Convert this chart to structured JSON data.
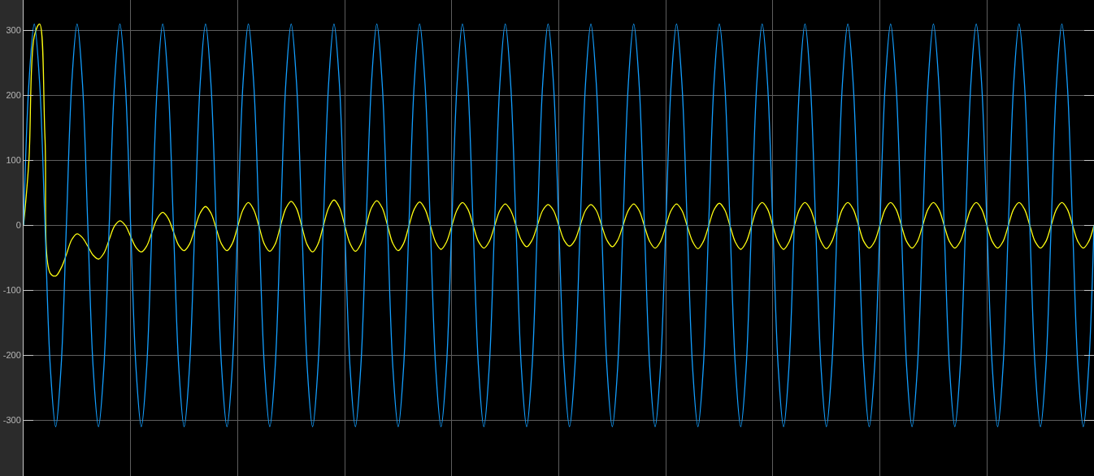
{
  "chart_data": {
    "type": "line",
    "categories": [
      null,
      null,
      null,
      null,
      null,
      null,
      null,
      null,
      null,
      null,
      null,
      null,
      null,
      null,
      null,
      null,
      null,
      null,
      null,
      null,
      null,
      null,
      null,
      null,
      null,
      null,
      null,
      null,
      null,
      null,
      null,
      null,
      null,
      null,
      null,
      null,
      null,
      null,
      null,
      null,
      null,
      null,
      null,
      null,
      null,
      null,
      null,
      null,
      null,
      null,
      null,
      null,
      null,
      null,
      null,
      null,
      null,
      null,
      null,
      null,
      null,
      null,
      null,
      null,
      null,
      null,
      null,
      null,
      null,
      null,
      null,
      null,
      null,
      null,
      null,
      null,
      null,
      null,
      null,
      null,
      null,
      null,
      null,
      null,
      null,
      null,
      null,
      null,
      null,
      null,
      null,
      null,
      null,
      null,
      null,
      null,
      null,
      null,
      null,
      null,
      null,
      null,
      null,
      null,
      null,
      null,
      null,
      null,
      null,
      null,
      null,
      null,
      null,
      null,
      null,
      null,
      null,
      null,
      null,
      null,
      null,
      null,
      null,
      null,
      null,
      null,
      null,
      null,
      null,
      null,
      null,
      null,
      null,
      null,
      null,
      null,
      null,
      null,
      null,
      null,
      null,
      null,
      null,
      null,
      null,
      null,
      null,
      null,
      null,
      null,
      null,
      null,
      null,
      null,
      null,
      null,
      null,
      null,
      null,
      null,
      null,
      null,
      null,
      null,
      null,
      null,
      null,
      null,
      null,
      null,
      null,
      null,
      null,
      null,
      null,
      null,
      null,
      null,
      null,
      null,
      null,
      null,
      null,
      null,
      null,
      null,
      null,
      null,
      null,
      null,
      null,
      null,
      null,
      null,
      null,
      null,
      null,
      null,
      null,
      null,
      null
    ],
    "series": [
      {
        "color": "#ffff11",
        "values": [
          0,
          100,
          291,
          310,
          135,
          -74,
          -78,
          -66,
          -45,
          -22,
          -13,
          -19,
          -32,
          -46,
          -52,
          -43,
          -22,
          -1,
          7,
          0,
          -17,
          -34,
          -41,
          -32,
          -10,
          11,
          20,
          11,
          -10,
          -31,
          -39,
          -29,
          -5,
          19,
          29,
          19,
          -5,
          -29,
          -39,
          -28,
          -2,
          24,
          35,
          24,
          -2,
          -29,
          -40,
          -29,
          -1,
          26,
          37,
          26,
          -2,
          -30,
          -41,
          -29,
          -1,
          27,
          39,
          28,
          0,
          -28,
          -40,
          -29,
          -1,
          27,
          38,
          27,
          0,
          -28,
          -39,
          -28,
          -1,
          25,
          36,
          25,
          0,
          -26,
          -37,
          -26,
          -1,
          24,
          35,
          25,
          0,
          -25,
          -35,
          -25,
          -1,
          23,
          33,
          23,
          0,
          -23,
          -33,
          -23,
          0,
          23,
          32,
          23,
          0,
          -23,
          -32,
          -23,
          0,
          23,
          32,
          23,
          0,
          -23,
          -33,
          -23,
          0,
          23,
          33,
          23,
          -1,
          -25,
          -35,
          -25,
          -1,
          23,
          33,
          23,
          -1,
          -25,
          -36,
          -25,
          -1,
          24,
          34,
          24,
          -1,
          -26,
          -37,
          -26,
          -1,
          25,
          35,
          25,
          -1,
          -26,
          -37,
          -26,
          -1,
          25,
          35,
          25,
          0,
          -25,
          -36,
          -25,
          0,
          25,
          35,
          25,
          0,
          -25,
          -35,
          -25,
          0,
          25,
          35,
          25,
          0,
          -25,
          -35,
          -25,
          0,
          25,
          35,
          25,
          0,
          -25,
          -35,
          -25,
          0,
          25,
          35,
          25,
          0,
          -25,
          -35,
          -25,
          0,
          25,
          35,
          25,
          0,
          -25,
          -35,
          -25,
          0,
          25,
          35,
          25,
          0,
          -25,
          -35,
          -25,
          0
        ]
      },
      {
        "color": "#139fff",
        "values": [
          0,
          219,
          310,
          219,
          0,
          -219,
          -310,
          -219,
          0,
          219,
          310,
          219,
          0,
          -219,
          -310,
          -219,
          0,
          219,
          310,
          219,
          0,
          -219,
          -310,
          -219,
          0,
          219,
          310,
          219,
          0,
          -219,
          -310,
          -219,
          0,
          219,
          310,
          219,
          0,
          -219,
          -310,
          -219,
          0,
          219,
          310,
          219,
          0,
          -219,
          -310,
          -219,
          0,
          219,
          310,
          219,
          0,
          -219,
          -310,
          -219,
          0,
          219,
          310,
          219,
          0,
          -219,
          -310,
          -219,
          0,
          219,
          310,
          219,
          0,
          -219,
          -310,
          -219,
          0,
          219,
          310,
          219,
          0,
          -219,
          -310,
          -219,
          0,
          219,
          310,
          219,
          0,
          -219,
          -310,
          -219,
          0,
          219,
          310,
          219,
          0,
          -219,
          -310,
          -219,
          0,
          219,
          310,
          219,
          0,
          -219,
          -310,
          -219,
          0,
          219,
          310,
          219,
          0,
          -219,
          -310,
          -219,
          0,
          219,
          310,
          219,
          0,
          -219,
          -310,
          -219,
          0,
          219,
          310,
          219,
          0,
          -219,
          -310,
          -219,
          0,
          219,
          310,
          219,
          0,
          -219,
          -310,
          -219,
          0,
          219,
          310,
          219,
          0,
          -219,
          -310,
          -219,
          0,
          219,
          310,
          219,
          0,
          -219,
          -310,
          -219,
          0,
          219,
          310,
          219,
          0,
          -219,
          -310,
          -219,
          0,
          219,
          310,
          219,
          0,
          -219,
          -310,
          -219,
          0,
          219,
          310,
          219,
          0,
          -219,
          -310,
          -219,
          0,
          219,
          310,
          219,
          0,
          -219,
          -310,
          -219,
          0,
          219,
          310,
          219,
          0,
          -219,
          -310,
          -219,
          0,
          219,
          310,
          219,
          0,
          -219,
          -310,
          -219,
          0
        ]
      }
    ],
    "ylim": [
      -386,
      347
    ],
    "yticks": [
      -300,
      -200,
      -100,
      0,
      100,
      200,
      300
    ],
    "grid": true,
    "tick_labels": "y",
    "marker": "none",
    "line_style": "solid"
  }
}
